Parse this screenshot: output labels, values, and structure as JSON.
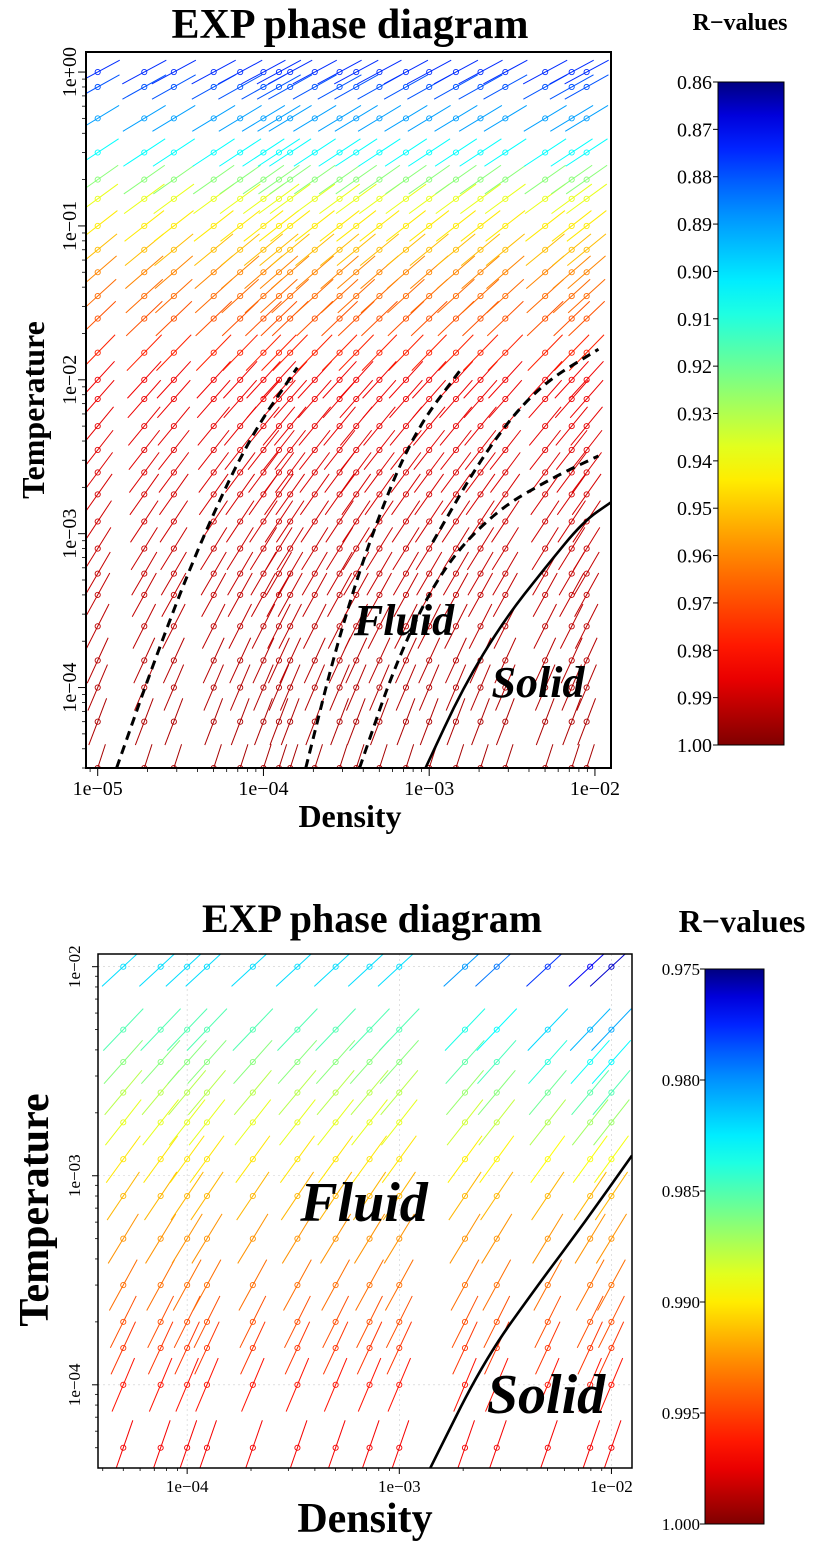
{
  "chart_data": [
    {
      "type": "scatter",
      "title": "EXP phase diagram",
      "xlabel": "Density",
      "ylabel": "Temperature",
      "x_scale": "log",
      "y_scale": "log",
      "xlim": [
        8.5e-06,
        0.0125
      ],
      "ylim": [
        3e-05,
        1.35
      ],
      "x_ticks": [
        "1e−05",
        "1e−04",
        "1e−03",
        "1e−02"
      ],
      "y_ticks": [
        "1e+00",
        "1e−01",
        "1e−02",
        "1e−03",
        "1e−04"
      ],
      "grid": false,
      "colorbar": {
        "label": "R−values",
        "range": [
          0.86,
          1.0
        ],
        "reversed": true,
        "ticks": [
          "0.86",
          "0.87",
          "0.88",
          "0.89",
          "0.90",
          "0.91",
          "0.92",
          "0.93",
          "0.94",
          "0.95",
          "0.96",
          "0.97",
          "0.98",
          "0.99",
          "1.00"
        ]
      },
      "regions": [
        "Fluid",
        "Solid"
      ],
      "grid_density": [
        1e-05,
        1.91e-05,
        2.88e-05,
        5.01e-05,
        7.24e-05,
        0.0001,
        0.000124,
        0.000145,
        0.000204,
        0.000288,
        0.000363,
        0.000501,
        0.000724,
        0.001,
        0.00145,
        0.00204,
        0.00288,
        0.00501,
        0.00724,
        0.00891
      ],
      "grid_temperature": [
        3e-05,
        6e-05,
        0.0001,
        0.00015,
        0.00025,
        0.0004,
        0.00055,
        0.0008,
        0.0012,
        0.0018,
        0.0025,
        0.0035,
        0.005,
        0.0075,
        0.01,
        0.015,
        0.025,
        0.035,
        0.05,
        0.07,
        0.1,
        0.15,
        0.2,
        0.3,
        0.5,
        0.8,
        1.0
      ],
      "r_value_by_temperature": [
        {
          "t": 3e-05,
          "r": 0.995
        },
        {
          "t": 0.001,
          "r": 0.99
        },
        {
          "t": 0.01,
          "r": 0.985
        },
        {
          "t": 0.02,
          "r": 0.972
        },
        {
          "t": 0.05,
          "r": 0.96
        },
        {
          "t": 0.08,
          "r": 0.948
        },
        {
          "t": 0.15,
          "r": 0.938
        },
        {
          "t": 0.3,
          "r": 0.905
        },
        {
          "t": 0.5,
          "r": 0.89
        },
        {
          "t": 1.0,
          "r": 0.875
        },
        {
          "t": 1.35,
          "r": 0.865
        }
      ],
      "series": [
        {
          "style": "dashed",
          "points": [
            [
              1.3e-05,
              3e-05
            ],
            [
              2.2e-05,
              0.00015
            ],
            [
              4e-05,
              0.0008
            ],
            [
              8e-05,
              0.004
            ],
            [
              0.00016,
              0.012
            ]
          ]
        },
        {
          "style": "dashed",
          "points": [
            [
              0.00018,
              3e-05
            ],
            [
              0.00028,
              0.0002
            ],
            [
              0.00045,
              0.001
            ],
            [
              0.0008,
              0.0045
            ],
            [
              0.0016,
              0.0122
            ]
          ]
        },
        {
          "style": "dashed",
          "points": [
            [
              0.00038,
              3e-05
            ],
            [
              0.00065,
              0.00016
            ],
            [
              0.0012,
              0.0006
            ],
            [
              0.0025,
              0.0014
            ],
            [
              0.0055,
              0.0023
            ],
            [
              0.0105,
              0.0032
            ]
          ]
        },
        {
          "style": "dashed",
          "points": [
            [
              0.00105,
              0.00088
            ],
            [
              0.0022,
              0.0035
            ],
            [
              0.0045,
              0.009
            ],
            [
              0.0105,
              0.0158
            ]
          ]
        },
        {
          "style": "solid",
          "points": [
            [
              0.00095,
              3e-05
            ],
            [
              0.0016,
              0.0001
            ],
            [
              0.0028,
              0.00027
            ],
            [
              0.005,
              0.0006
            ],
            [
              0.0085,
              0.0012
            ],
            [
              0.0125,
              0.0016
            ]
          ]
        }
      ]
    },
    {
      "type": "scatter",
      "title": "EXP phase diagram",
      "xlabel": "Density",
      "ylabel": "Temperature",
      "x_scale": "log",
      "y_scale": "log",
      "xlim": [
        3.8e-05,
        0.0125
      ],
      "ylim": [
        4e-05,
        0.0115
      ],
      "x_ticks": [
        "1e−04",
        "1e−03",
        "1e−02"
      ],
      "y_ticks": [
        "1e−02",
        "1e−03",
        "1e−04"
      ],
      "grid": true,
      "colorbar": {
        "label": "R−values",
        "range": [
          0.975,
          1.0
        ],
        "reversed": true,
        "ticks": [
          "0.975",
          "0.980",
          "0.985",
          "0.990",
          "0.995",
          "1.000"
        ]
      },
      "regions": [
        "Fluid",
        "Solid"
      ],
      "grid_density": [
        5e-05,
        7.5e-05,
        0.0001,
        0.000124,
        0.000204,
        0.000331,
        0.000501,
        0.000724,
        0.001,
        0.00204,
        0.00288,
        0.00501,
        0.00794,
        0.01
      ],
      "grid_temperature": [
        5e-05,
        0.0001,
        0.00015,
        0.0002,
        0.0003,
        0.0005,
        0.0008,
        0.0012,
        0.0018,
        0.0025,
        0.0035,
        0.005,
        0.01
      ],
      "r_value_by_temperature": [
        {
          "t": 4e-05,
          "r": 0.9975
        },
        {
          "t": 0.0001,
          "r": 0.9965
        },
        {
          "t": 0.00025,
          "r": 0.994
        },
        {
          "t": 0.0008,
          "r": 0.9915
        },
        {
          "t": 0.0015,
          "r": 0.9895
        },
        {
          "t": 0.003,
          "r": 0.987
        },
        {
          "t": 0.005,
          "r": 0.985
        },
        {
          "t": 0.0115,
          "r": 0.9815
        }
      ],
      "high_density_offset": {
        "from_density": 0.001,
        "r_decrease_at_max_density": 0.007
      },
      "series": [
        {
          "style": "solid",
          "points": [
            [
              0.0014,
              4e-05
            ],
            [
              0.0025,
              0.00013
            ],
            [
              0.0045,
              0.0003
            ],
            [
              0.0075,
              0.0006
            ],
            [
              0.0125,
              0.00125
            ]
          ]
        }
      ]
    }
  ]
}
